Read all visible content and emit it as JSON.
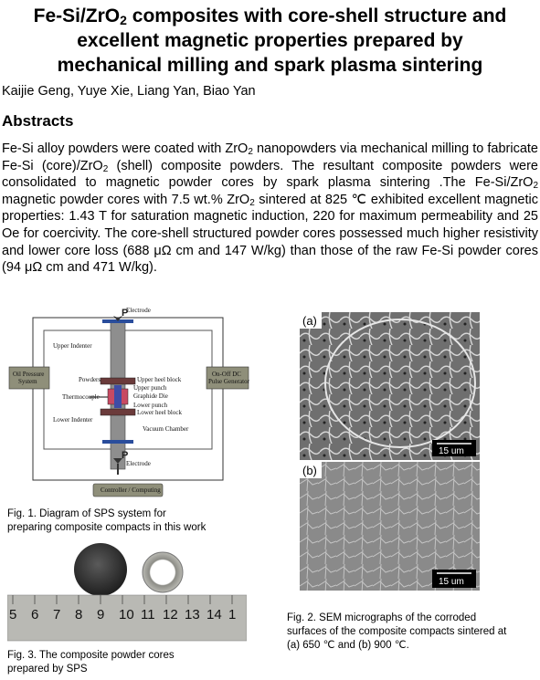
{
  "title": {
    "line1": "Fe-Si/ZrO",
    "line1_sub": "2",
    "line1_rest": " composites with core-shell structure and",
    "line2": "excellent magnetic properties prepared by",
    "line3": "mechanical milling and spark plasma sintering"
  },
  "authors": "Kaijie Geng, Yuye  Xie, Liang Yan,  Biao Yan",
  "section_heading": "Abstracts",
  "abstract": {
    "p1": "Fe-Si alloy powders were coated with ZrO",
    "p2": " nanopowders via mechanical milling to fabricate Fe-Si (core)/ZrO",
    "p3": " (shell) composite powders. The resultant composite powders were consolidated to magnetic powder cores by spark plasma sintering .The Fe-Si/ZrO",
    "p4": " magnetic powder cores with 7.5 wt.% ZrO",
    "p5": " sintered at 825 ℃  exhibited excellent magnetic properties: 1.43 T for saturation magnetic induction, 220 for maximum permeability and 25 Oe for coercivity. The core-shell structured powder cores possessed much higher resistivity and lower core loss (688 μΩ cm and 147 W/kg) than those of the raw Fe-Si powder cores  (94 μΩ cm and 471 W/kg).",
    "sub": "2"
  },
  "fig1": {
    "caption_line1": "Fig. 1. Diagram  of SPS system for",
    "caption_line2": "preparing  composite compacts in this work",
    "labels": {
      "electrode_top": "Electrode",
      "electrode_bottom": "Electrode",
      "p_top": "P",
      "p_bottom": "P",
      "upper_indenter": "Upper Indenter",
      "lower_indenter": "Lower Indenter",
      "powders": "Powders",
      "thermocouple": "Thermocouple",
      "upper_heel": "Upper heel block",
      "upper_punch": "Upper punch",
      "graphite_die": "Graphide Die",
      "lower_punch": "Lower punch",
      "lower_heel": "Lower heel block",
      "vacuum": "Vacuum Chamber",
      "oil_pressure_1": "Oil Pressure",
      "oil_pressure_2": "System",
      "dc_1": "On-Off DC",
      "dc_2": "Pulse Generator",
      "controller": "Controller / Computing"
    }
  },
  "fig2": {
    "label_a": "(a)",
    "label_b": "(b)",
    "scale_a": "15 um",
    "scale_b": "15 um",
    "caption_line1": "Fig. 2. SEM micrographs  of the corroded",
    "caption_line2": "surfaces of the composite compacts sintered at",
    "caption_line3": "(a) 650 ℃ and (b) 900 ℃."
  },
  "fig3": {
    "ruler_numbers": [
      "5",
      "6",
      "7",
      "8",
      "9",
      "10",
      "11",
      "12",
      "13",
      "14",
      "1"
    ],
    "caption_line1": "Fig. 3. The  composite powder cores",
    "caption_line2": "prepared  by SPS"
  }
}
